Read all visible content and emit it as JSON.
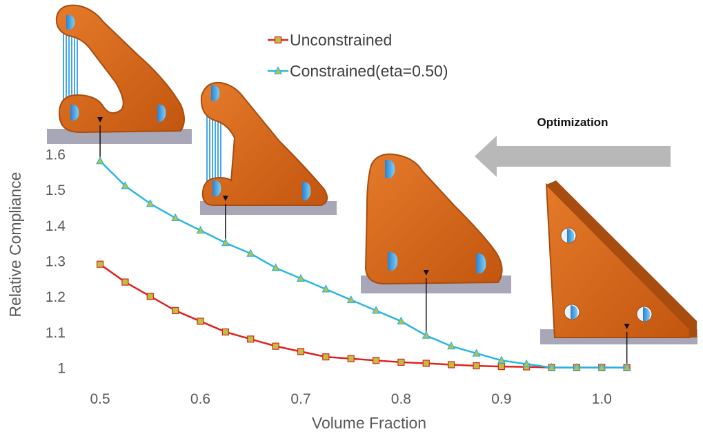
{
  "chart_data": {
    "type": "line",
    "xlabel": "Volume Fraction",
    "ylabel": "Relative Compliance",
    "xlim": [
      0.48,
      1.05
    ],
    "ylim": [
      0.98,
      1.62
    ],
    "x_ticks": [
      "0.5",
      "0.6",
      "0.7",
      "0.8",
      "0.9",
      "1.0"
    ],
    "y_ticks": [
      "1",
      "1.1",
      "1.2",
      "1.3",
      "1.4",
      "1.5",
      "1.6"
    ],
    "grid": false,
    "legend_position": "top-center",
    "x": [
      0.5,
      0.525,
      0.55,
      0.575,
      0.6,
      0.625,
      0.65,
      0.675,
      0.7,
      0.725,
      0.75,
      0.775,
      0.8,
      0.825,
      0.85,
      0.875,
      0.9,
      0.925,
      0.95,
      0.975,
      1.0,
      1.025
    ],
    "series": [
      {
        "name": "Unconstrained",
        "color": "#e0201b",
        "marker": "square",
        "values": [
          1.29,
          1.24,
          1.2,
          1.16,
          1.13,
          1.1,
          1.08,
          1.06,
          1.045,
          1.03,
          1.025,
          1.02,
          1.015,
          1.012,
          1.008,
          1.005,
          1.003,
          1.002,
          1.0,
          1.0,
          1.0,
          1.0
        ]
      },
      {
        "name": "Constrained(eta=0.50)",
        "color": "#29b5e3",
        "marker": "triangle",
        "values": [
          1.58,
          1.51,
          1.46,
          1.42,
          1.385,
          1.35,
          1.32,
          1.28,
          1.25,
          1.22,
          1.19,
          1.16,
          1.13,
          1.09,
          1.06,
          1.04,
          1.02,
          1.01,
          1.0,
          1.0,
          1.0,
          1.0
        ]
      }
    ],
    "annotations": [
      {
        "text": "Optimization",
        "arrow_direction": "left"
      }
    ],
    "insets": [
      {
        "name": "bracket-shape-vf-0.5",
        "points_to_x": 0.5
      },
      {
        "name": "bracket-shape-vf-0.625",
        "points_to_x": 0.625
      },
      {
        "name": "bracket-shape-vf-0.825",
        "points_to_x": 0.825
      },
      {
        "name": "bracket-shape-vf-1.025",
        "points_to_x": 1.025
      }
    ]
  },
  "colors": {
    "part": "#d2661a",
    "part_dark": "#a84c10",
    "hole": "#3aaee8",
    "support": "#44a8e8",
    "base": "#a8a7b7",
    "arrow": "#b8b8b8",
    "axis_text": "#595959"
  }
}
